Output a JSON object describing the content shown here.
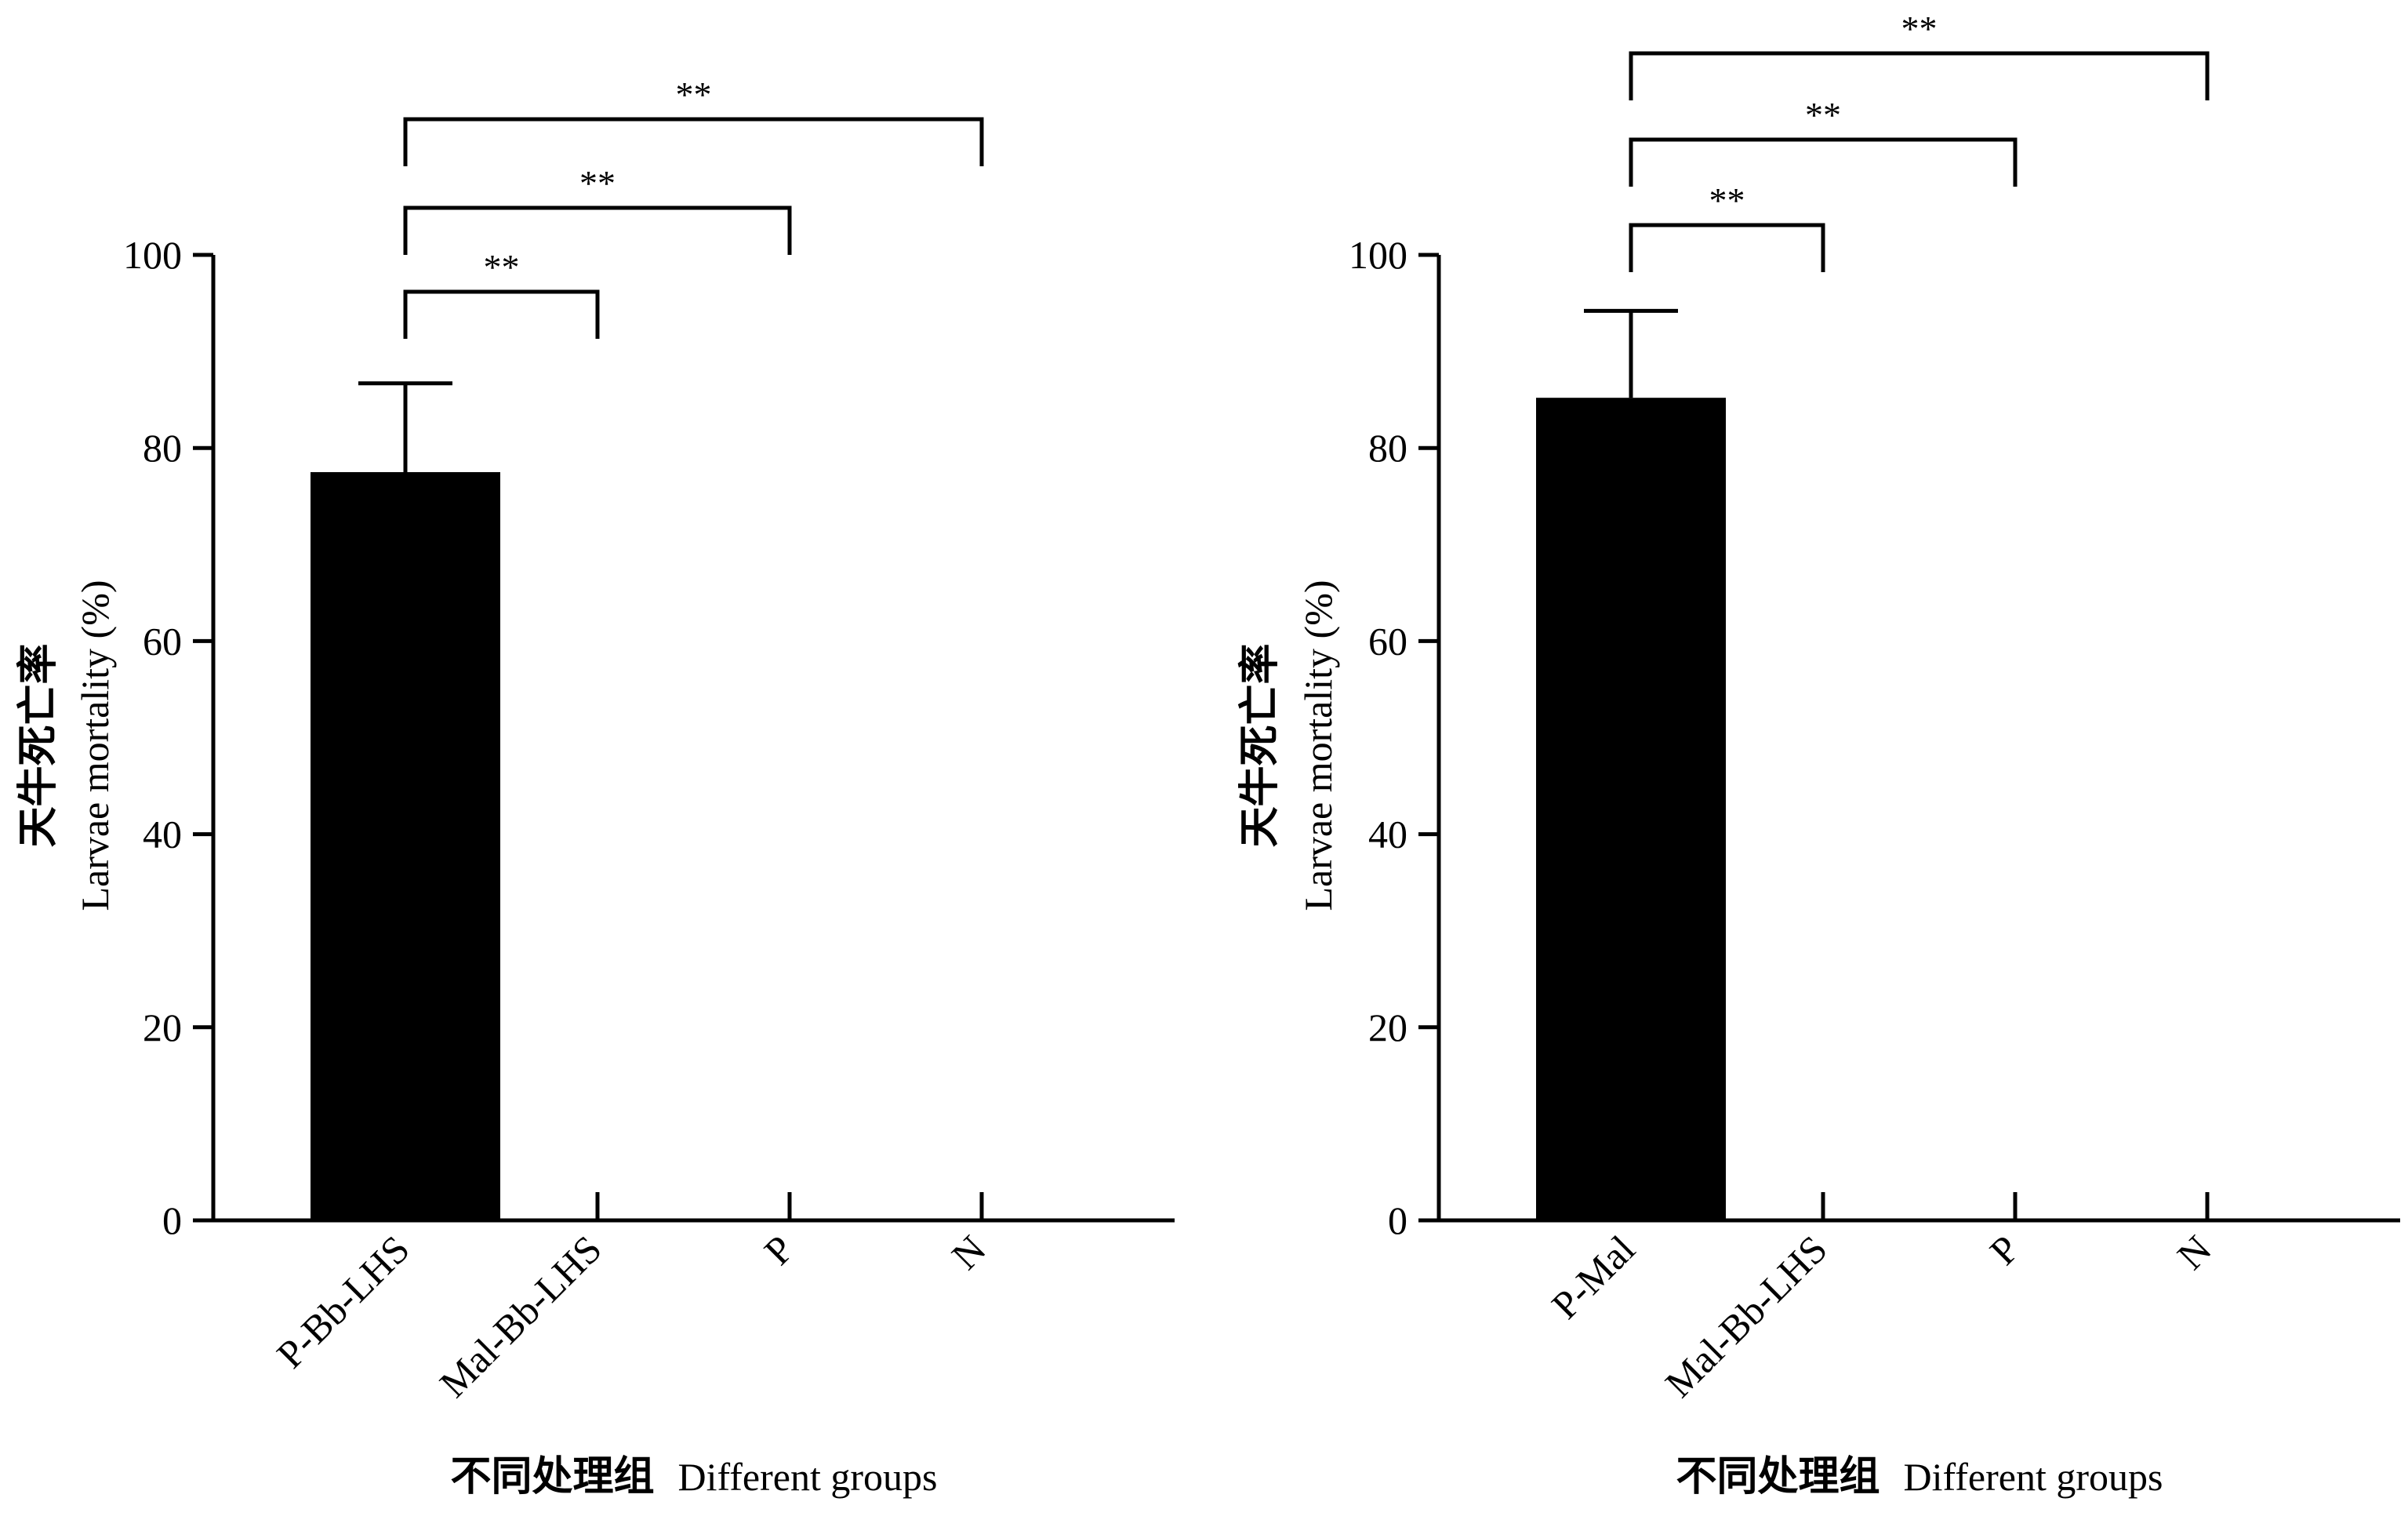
{
  "chart_data": [
    {
      "type": "bar",
      "categories": [
        "P-Bb-LHS",
        "Mal-Bb-LHS",
        "P",
        "N"
      ],
      "values": [
        77.5,
        0,
        0,
        0
      ],
      "error": [
        9.2,
        0,
        0,
        0
      ],
      "ylim": [
        0,
        100
      ],
      "yticks": [
        "0",
        "20",
        "40",
        "60",
        "80",
        "100"
      ],
      "ylabel_cn": "天牛死亡率",
      "ylabel_en": "Larvae mortality (%)",
      "xlabel_cn": "不同处理组",
      "xlabel_en": "Different groups",
      "bar_color": "#000000",
      "significance": [
        {
          "from": "P-Bb-LHS",
          "to": "Mal-Bb-LHS",
          "label": "**"
        },
        {
          "from": "P-Bb-LHS",
          "to": "P",
          "label": "**"
        },
        {
          "from": "P-Bb-LHS",
          "to": "N",
          "label": "**"
        }
      ]
    },
    {
      "type": "bar",
      "categories": [
        "P-Mal",
        "Mal-Bb-LHS",
        "P",
        "N"
      ],
      "values": [
        85.2,
        0,
        0,
        0
      ],
      "error": [
        9.0,
        0,
        0,
        0
      ],
      "ylim": [
        0,
        100
      ],
      "yticks": [
        "0",
        "20",
        "40",
        "60",
        "80",
        "100"
      ],
      "ylabel_cn": "天牛死亡率",
      "ylabel_en": "Larvae mortality (%)",
      "xlabel_cn": "不同处理组",
      "xlabel_en": "Different groups",
      "bar_color": "#000000",
      "significance": [
        {
          "from": "P-Mal",
          "to": "Mal-Bb-LHS",
          "label": "**"
        },
        {
          "from": "P-Mal",
          "to": "P",
          "label": "**"
        },
        {
          "from": "P-Mal",
          "to": "N",
          "label": "**"
        }
      ]
    }
  ]
}
